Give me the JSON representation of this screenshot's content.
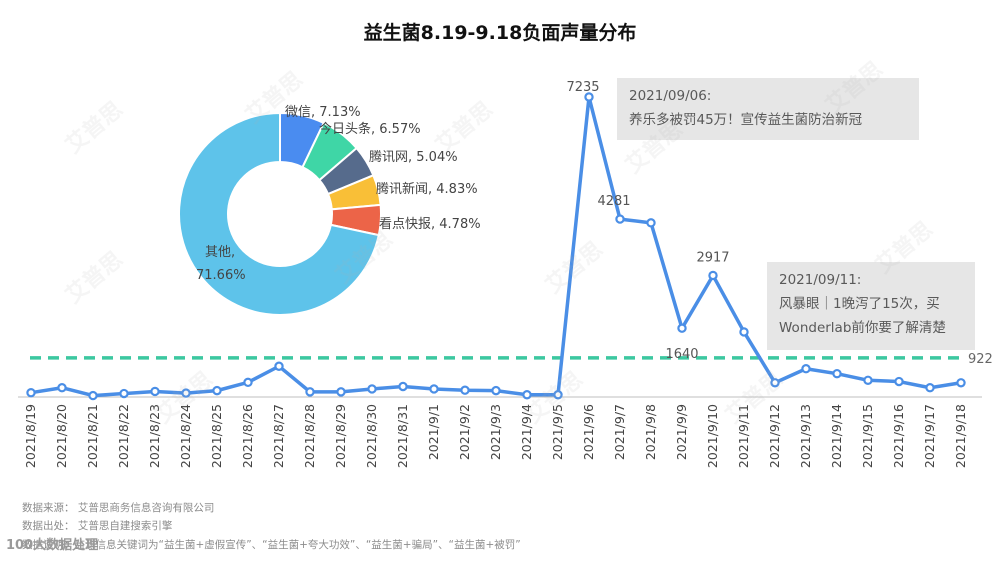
{
  "title": "益生菌8.19-9.18负面声量分布",
  "chart_data": [
    {
      "type": "line",
      "categories": [
        "2021/8/19",
        "2021/8/20",
        "2021/8/21",
        "2021/8/22",
        "2021/8/23",
        "2021/8/24",
        "2021/8/25",
        "2021/8/26",
        "2021/8/27",
        "2021/8/28",
        "2021/8/29",
        "2021/8/30",
        "2021/8/31",
        "2021/9/1",
        "2021/9/2",
        "2021/9/3",
        "2021/9/4",
        "2021/9/5",
        "2021/9/6",
        "2021/9/7",
        "2021/9/8",
        "2021/9/9",
        "2021/9/10",
        "2021/9/11",
        "2021/9/12",
        "2021/9/13",
        "2021/9/14",
        "2021/9/15",
        "2021/9/16",
        "2021/9/17",
        "2021/9/18"
      ],
      "values": [
        80,
        200,
        10,
        60,
        110,
        70,
        130,
        330,
        720,
        100,
        100,
        170,
        230,
        170,
        140,
        130,
        30,
        30,
        7235,
        4281,
        4190,
        1640,
        2917,
        1550,
        320,
        660,
        540,
        380,
        350,
        200,
        320
      ],
      "data_labels": [
        {
          "index": 18,
          "text": "7235"
        },
        {
          "index": 19,
          "text": "4281"
        },
        {
          "index": 21,
          "text": "1640"
        },
        {
          "index": 22,
          "text": "2917"
        }
      ],
      "reference_line": {
        "value": 922,
        "label": "922",
        "style": "dashed",
        "color": "#3cc8a0"
      },
      "ylim": [
        0,
        7500
      ],
      "color": "#4a8ee6",
      "grid": false
    },
    {
      "type": "pie",
      "donut": true,
      "slices": [
        {
          "label": "微信",
          "value": 7.13,
          "text": "微信, 7.13%",
          "color": "#4a8cf0"
        },
        {
          "label": "今日头条",
          "value": 6.57,
          "text": "今日头条, 6.57%",
          "color": "#3fd6a6"
        },
        {
          "label": "腾讯网",
          "value": 5.04,
          "text": "腾讯网, 5.04%",
          "color": "#566b8c"
        },
        {
          "label": "腾讯新闻",
          "value": 4.83,
          "text": "腾讯新闻, 4.83%",
          "color": "#f9bf37"
        },
        {
          "label": "看点快报",
          "value": 4.78,
          "text": "看点快报, 4.78%",
          "color": "#ec6448"
        },
        {
          "label": "其他",
          "value": 71.66,
          "text_line1": "其他,",
          "text_line2": "71.66%",
          "color": "#5ec3ea"
        }
      ]
    }
  ],
  "callouts": [
    {
      "date": "2021/09/06:",
      "text": "养乐多被罚45万！宣传益生菌防治新冠"
    },
    {
      "date": "2021/09/11:",
      "line1": "风暴眼｜1晚泻了15次，买",
      "line2": "Wonderlab前你要了解清楚"
    }
  ],
  "footer": {
    "source": "数据来源：  艾普思商务信息咨询有限公司",
    "origin": "数据出处：  艾普思自建搜索引擎",
    "note": "数据说明：监测信息关键词为“益生菌+虚假宣传”、“益生菌+夸大功效”、“益生菌+骗局”、“益生菌+被罚”"
  },
  "badge": "100大数据处理",
  "watermark": "艾普思"
}
